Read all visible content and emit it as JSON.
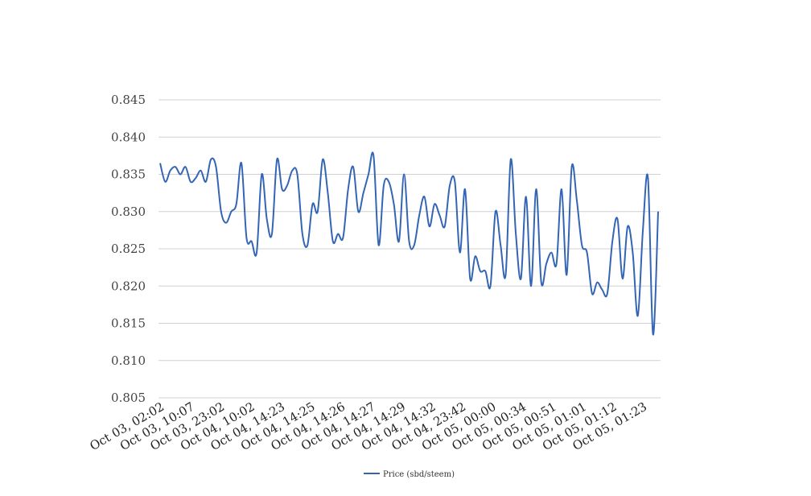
{
  "chart_data": {
    "type": "line",
    "title": "",
    "xlabel": "",
    "ylabel": "",
    "ylim": [
      0.805,
      0.845
    ],
    "yticks": [
      "0.845",
      "0.840",
      "0.835",
      "0.830",
      "0.825",
      "0.820",
      "0.815",
      "0.810",
      "0.805"
    ],
    "grid": true,
    "legend_position": "bottom-center",
    "xtick_labels": [
      "Oct 03, 02:02",
      "Oct 03, 10:07",
      "Oct 03, 23:02",
      "Oct 04, 10:02",
      "Oct 04, 14:23",
      "Oct 04, 14:25",
      "Oct 04, 14:26",
      "Oct 04, 14:27",
      "Oct 04, 14:29",
      "Oct 04, 14:32",
      "Oct 04, 23:42",
      "Oct 05, 00:00",
      "Oct 05, 00:34",
      "Oct 05, 00:51",
      "Oct 05, 01:01",
      "Oct 05, 01:12",
      "Oct 05, 01:23"
    ],
    "series": [
      {
        "name": "Price (sbd/steem)",
        "color": "#3465b5",
        "values": [
          0.8365,
          0.834,
          0.8355,
          0.836,
          0.835,
          0.836,
          0.834,
          0.8345,
          0.8355,
          0.834,
          0.837,
          0.836,
          0.83,
          0.8285,
          0.83,
          0.831,
          0.8365,
          0.8265,
          0.826,
          0.8245,
          0.835,
          0.829,
          0.827,
          0.837,
          0.833,
          0.8335,
          0.8355,
          0.835,
          0.827,
          0.8255,
          0.831,
          0.83,
          0.837,
          0.8325,
          0.826,
          0.827,
          0.8265,
          0.833,
          0.836,
          0.83,
          0.8325,
          0.835,
          0.8375,
          0.8255,
          0.8335,
          0.834,
          0.831,
          0.826,
          0.835,
          0.826,
          0.8255,
          0.8295,
          0.832,
          0.828,
          0.831,
          0.8295,
          0.828,
          0.8335,
          0.834,
          0.8245,
          0.833,
          0.821,
          0.824,
          0.822,
          0.822,
          0.82,
          0.83,
          0.8255,
          0.8215,
          0.837,
          0.827,
          0.821,
          0.832,
          0.82,
          0.833,
          0.8205,
          0.823,
          0.8245,
          0.823,
          0.833,
          0.8215,
          0.836,
          0.8315,
          0.8255,
          0.8245,
          0.819,
          0.8205,
          0.8195,
          0.819,
          0.826,
          0.829,
          0.821,
          0.828,
          0.8245,
          0.816,
          0.8275,
          0.8345,
          0.8135,
          0.83
        ]
      }
    ]
  }
}
